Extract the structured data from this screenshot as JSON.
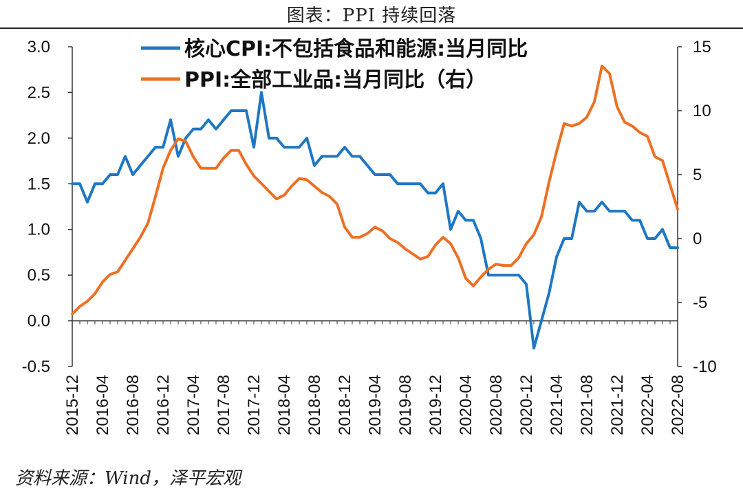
{
  "title": "图表：PPI 持续回落",
  "source": "资料来源：Wind，泽平宏观",
  "chart_data": {
    "type": "line",
    "xlabel": "",
    "ylabel": "",
    "x": [
      "2015-12",
      "2016-01",
      "2016-02",
      "2016-03",
      "2016-04",
      "2016-05",
      "2016-06",
      "2016-07",
      "2016-08",
      "2016-09",
      "2016-10",
      "2016-11",
      "2016-12",
      "2017-01",
      "2017-02",
      "2017-03",
      "2017-04",
      "2017-05",
      "2017-06",
      "2017-07",
      "2017-08",
      "2017-09",
      "2017-10",
      "2017-11",
      "2017-12",
      "2018-01",
      "2018-02",
      "2018-03",
      "2018-04",
      "2018-05",
      "2018-06",
      "2018-07",
      "2018-08",
      "2018-09",
      "2018-10",
      "2018-11",
      "2018-12",
      "2019-01",
      "2019-02",
      "2019-03",
      "2019-04",
      "2019-05",
      "2019-06",
      "2019-07",
      "2019-08",
      "2019-09",
      "2019-10",
      "2019-11",
      "2019-12",
      "2020-01",
      "2020-02",
      "2020-03",
      "2020-04",
      "2020-05",
      "2020-06",
      "2020-07",
      "2020-08",
      "2020-09",
      "2020-10",
      "2020-11",
      "2020-12",
      "2021-01",
      "2021-02",
      "2021-03",
      "2021-04",
      "2021-05",
      "2021-06",
      "2021-07",
      "2021-08",
      "2021-09",
      "2021-10",
      "2021-11",
      "2021-12",
      "2022-01",
      "2022-02",
      "2022-03",
      "2022-04",
      "2022-05",
      "2022-06",
      "2022-07",
      "2022-08"
    ],
    "x_tick_labels": [
      "2015-12",
      "2016-04",
      "2016-08",
      "2016-12",
      "2017-04",
      "2017-08",
      "2017-12",
      "2018-04",
      "2018-08",
      "2018-12",
      "2019-04",
      "2019-08",
      "2019-12",
      "2020-04",
      "2020-08",
      "2020-12",
      "2021-04",
      "2021-08",
      "2021-12",
      "2022-04",
      "2022-08"
    ],
    "y_left": {
      "ylim": [
        -0.5,
        3.0
      ],
      "ticks": [
        "-0.5",
        "0.0",
        "0.5",
        "1.0",
        "1.5",
        "2.0",
        "2.5",
        "3.0"
      ]
    },
    "y_right": {
      "ylim": [
        -10,
        15
      ],
      "ticks": [
        "-10",
        "-5",
        "0",
        "5",
        "10",
        "15"
      ]
    },
    "grid": false,
    "legend_position": "top",
    "series": [
      {
        "name": "核心CPI:不包括食品和能源:当月同比",
        "axis": "left",
        "color": "#1f77c4",
        "values": [
          1.5,
          1.5,
          1.3,
          1.5,
          1.5,
          1.6,
          1.6,
          1.8,
          1.6,
          1.7,
          1.8,
          1.9,
          1.9,
          2.2,
          1.8,
          2.0,
          2.1,
          2.1,
          2.2,
          2.1,
          2.2,
          2.3,
          2.3,
          2.3,
          1.9,
          2.5,
          2.0,
          2.0,
          1.9,
          1.9,
          1.9,
          2.0,
          1.7,
          1.8,
          1.8,
          1.8,
          1.9,
          1.8,
          1.8,
          1.7,
          1.6,
          1.6,
          1.6,
          1.5,
          1.5,
          1.5,
          1.5,
          1.4,
          1.4,
          1.5,
          1.0,
          1.2,
          1.1,
          1.1,
          0.9,
          0.5,
          0.5,
          0.5,
          0.5,
          0.5,
          0.4,
          -0.3,
          0.0,
          0.3,
          0.7,
          0.9,
          0.9,
          1.3,
          1.2,
          1.2,
          1.3,
          1.2,
          1.2,
          1.2,
          1.1,
          1.1,
          0.9,
          0.9,
          1.0,
          0.8,
          0.8
        ]
      },
      {
        "name": "PPI:全部工业品:当月同比（右）",
        "axis": "right",
        "color": "#ed7024",
        "values": [
          -5.9,
          -5.3,
          -4.9,
          -4.3,
          -3.4,
          -2.8,
          -2.6,
          -1.7,
          -0.8,
          0.1,
          1.2,
          3.3,
          5.5,
          6.9,
          7.8,
          7.6,
          6.4,
          5.5,
          5.5,
          5.5,
          6.3,
          6.9,
          6.9,
          5.8,
          4.9,
          4.3,
          3.7,
          3.1,
          3.4,
          4.1,
          4.7,
          4.6,
          4.1,
          3.6,
          3.3,
          2.7,
          0.9,
          0.1,
          0.1,
          0.4,
          0.9,
          0.6,
          0.0,
          -0.3,
          -0.8,
          -1.2,
          -1.6,
          -1.4,
          -0.5,
          0.1,
          -0.4,
          -1.5,
          -3.1,
          -3.7,
          -3.0,
          -2.4,
          -2.0,
          -2.1,
          -2.1,
          -1.5,
          -0.4,
          0.3,
          1.7,
          4.4,
          6.8,
          9.0,
          8.8,
          9.0,
          9.5,
          10.7,
          13.5,
          12.9,
          10.3,
          9.1,
          8.8,
          8.3,
          8.0,
          6.4,
          6.1,
          4.2,
          2.3
        ]
      }
    ]
  }
}
